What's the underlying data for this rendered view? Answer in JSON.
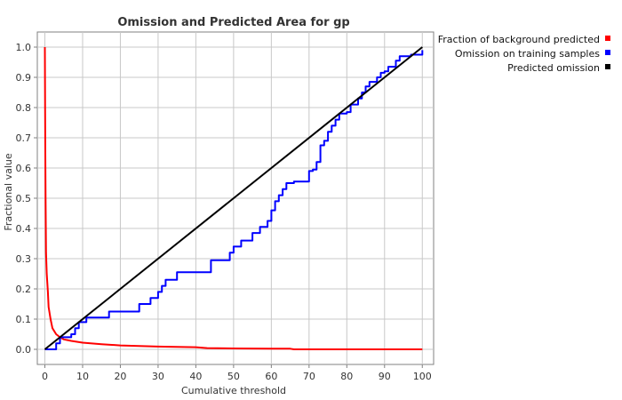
{
  "chart_data": {
    "type": "line",
    "title": "Omission and Predicted Area for gp",
    "xlabel": "Cumulative threshold",
    "ylabel": "Fractional value",
    "xlim": [
      -2,
      103
    ],
    "ylim": [
      -0.05,
      1.05
    ],
    "xticks": [
      "0",
      "10",
      "20",
      "30",
      "40",
      "50",
      "60",
      "70",
      "80",
      "90",
      "100"
    ],
    "yticks": [
      "0.0",
      "0.1",
      "0.2",
      "0.3",
      "0.4",
      "0.5",
      "0.6",
      "0.7",
      "0.8",
      "0.9",
      "1.0"
    ],
    "grid": true,
    "legend_position": "top-right, outside plot",
    "series": [
      {
        "name": "Fraction of background predicted",
        "color": "#ff0000",
        "x": [
          0,
          0.1,
          0.2,
          0.3,
          0.5,
          0.8,
          1,
          1.5,
          2,
          3,
          4,
          5,
          7,
          10,
          15,
          20,
          30,
          40,
          43,
          50,
          60,
          65,
          66,
          70,
          80,
          90,
          100
        ],
        "y": [
          1.0,
          0.7,
          0.5,
          0.32,
          0.25,
          0.19,
          0.14,
          0.1,
          0.07,
          0.05,
          0.04,
          0.033,
          0.028,
          0.022,
          0.017,
          0.013,
          0.009,
          0.007,
          0.004,
          0.003,
          0.002,
          0.002,
          0.0,
          0.0,
          0.0,
          0.0,
          0.0
        ]
      },
      {
        "name": "Omission on training samples",
        "color": "#0000ff",
        "x": [
          0,
          2,
          3,
          4,
          5,
          7,
          8,
          9,
          10,
          11,
          17,
          24,
          25,
          28,
          29,
          30,
          31,
          32,
          33,
          35,
          43,
          44,
          48,
          49,
          50,
          51,
          52,
          53,
          55,
          56,
          57,
          58,
          59,
          60,
          61,
          62,
          63,
          64,
          66,
          70,
          71,
          72,
          73,
          74,
          75,
          76,
          77,
          78,
          80,
          81,
          83,
          84,
          85,
          86,
          87,
          88,
          89,
          90,
          91,
          92,
          93,
          94,
          97,
          100
        ],
        "y": [
          0.0,
          0.0,
          0.02,
          0.04,
          0.04,
          0.05,
          0.07,
          0.09,
          0.09,
          0.105,
          0.125,
          0.125,
          0.15,
          0.17,
          0.17,
          0.19,
          0.21,
          0.23,
          0.23,
          0.255,
          0.255,
          0.295,
          0.295,
          0.32,
          0.34,
          0.34,
          0.36,
          0.36,
          0.385,
          0.385,
          0.405,
          0.405,
          0.425,
          0.46,
          0.49,
          0.51,
          0.53,
          0.55,
          0.555,
          0.59,
          0.595,
          0.62,
          0.675,
          0.69,
          0.72,
          0.74,
          0.76,
          0.78,
          0.785,
          0.81,
          0.83,
          0.85,
          0.87,
          0.885,
          0.885,
          0.9,
          0.915,
          0.92,
          0.935,
          0.935,
          0.955,
          0.97,
          0.975,
          0.99
        ]
      },
      {
        "name": "Predicted omission",
        "color": "#000000",
        "x": [
          0,
          100
        ],
        "y": [
          0,
          1
        ]
      }
    ]
  }
}
